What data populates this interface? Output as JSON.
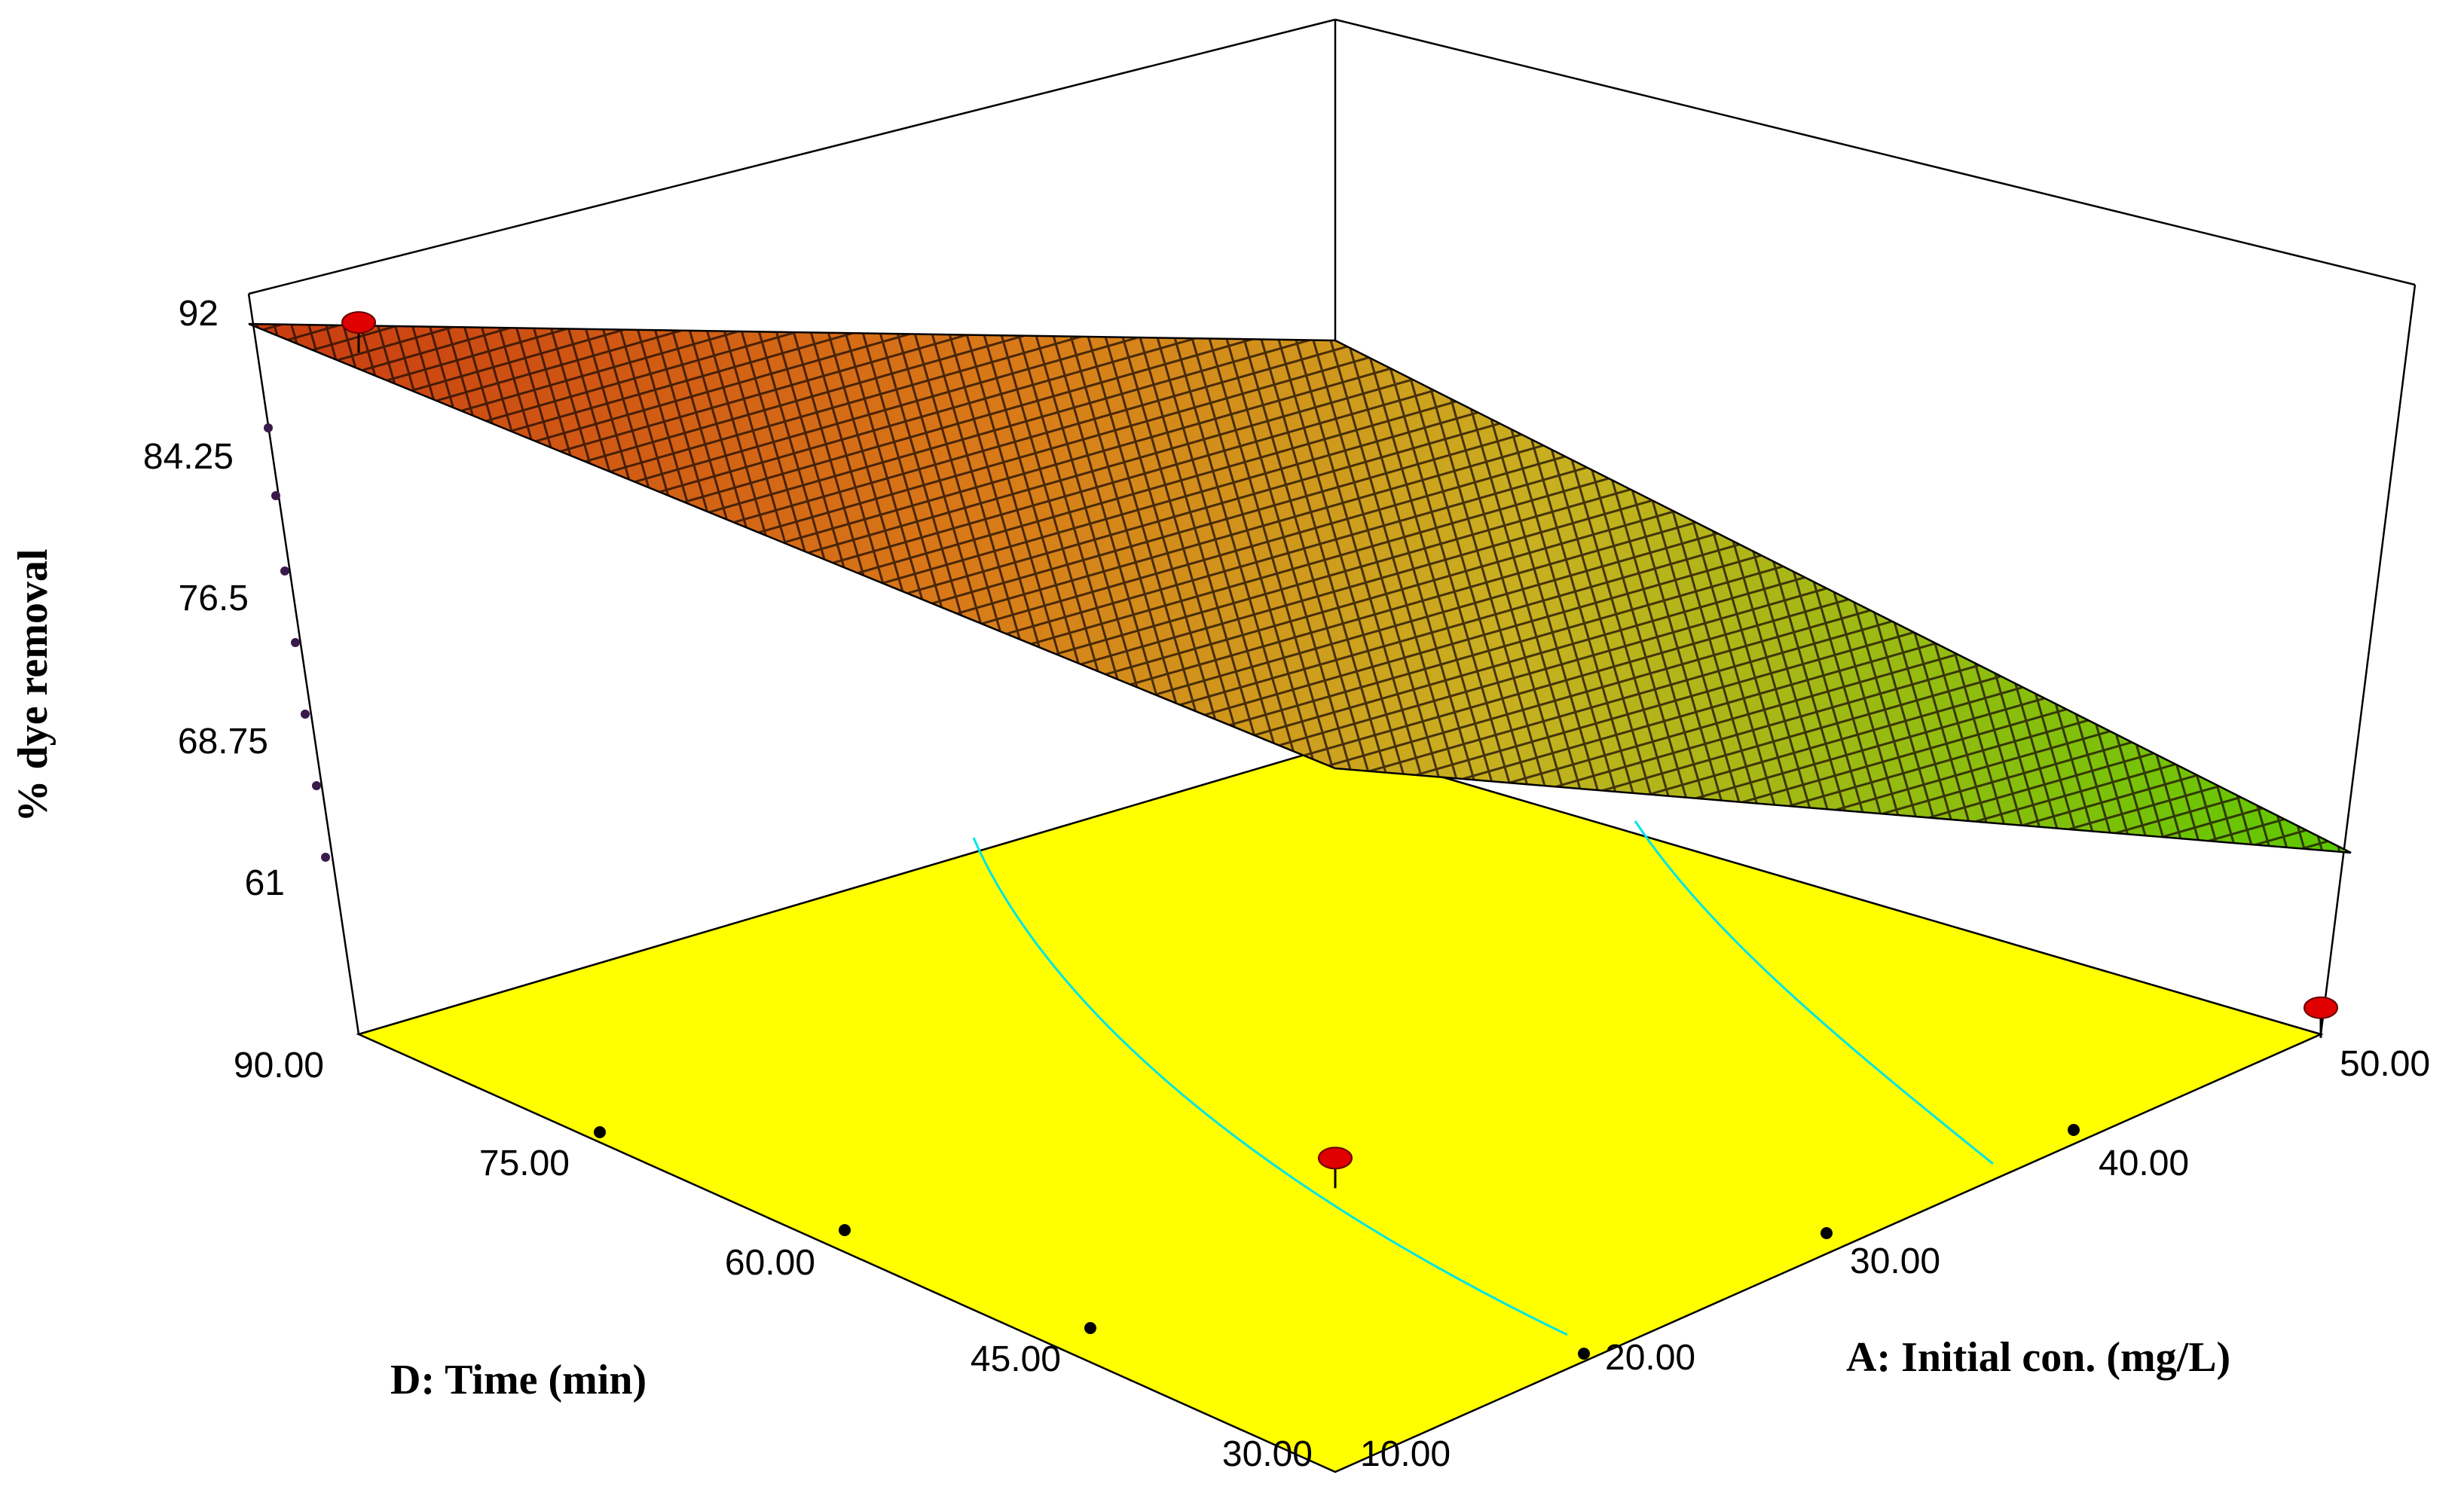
{
  "chart_data": {
    "type": "surface3d",
    "title": "",
    "zlabel": "% dye removal",
    "xlabel": "D: Time (min)",
    "ylabel": "A: Initial con. (mg/L)",
    "z_ticks": [
      "92",
      "84.25",
      "76.5",
      "68.75",
      "61"
    ],
    "x_ticks": [
      "30.00",
      "45.00",
      "60.00",
      "75.00",
      "90.00"
    ],
    "y_ticks": [
      "10.00",
      "20.00",
      "30.00",
      "40.00",
      "50.00"
    ],
    "zlim": [
      61,
      92
    ],
    "xlim": [
      30,
      90
    ],
    "ylim": [
      10,
      50
    ],
    "design_points": [
      {
        "time": 90,
        "conc": 10,
        "removal": 92
      },
      {
        "time": 30,
        "conc": 10,
        "removal": 74
      },
      {
        "time": 30,
        "conc": 50,
        "removal": 61
      }
    ],
    "colors": {
      "floor": "#ffff00",
      "contour": "#00e5e5",
      "surface_high": "#d84a10",
      "surface_low": "#5cc800",
      "design_point": "#e00000"
    }
  }
}
